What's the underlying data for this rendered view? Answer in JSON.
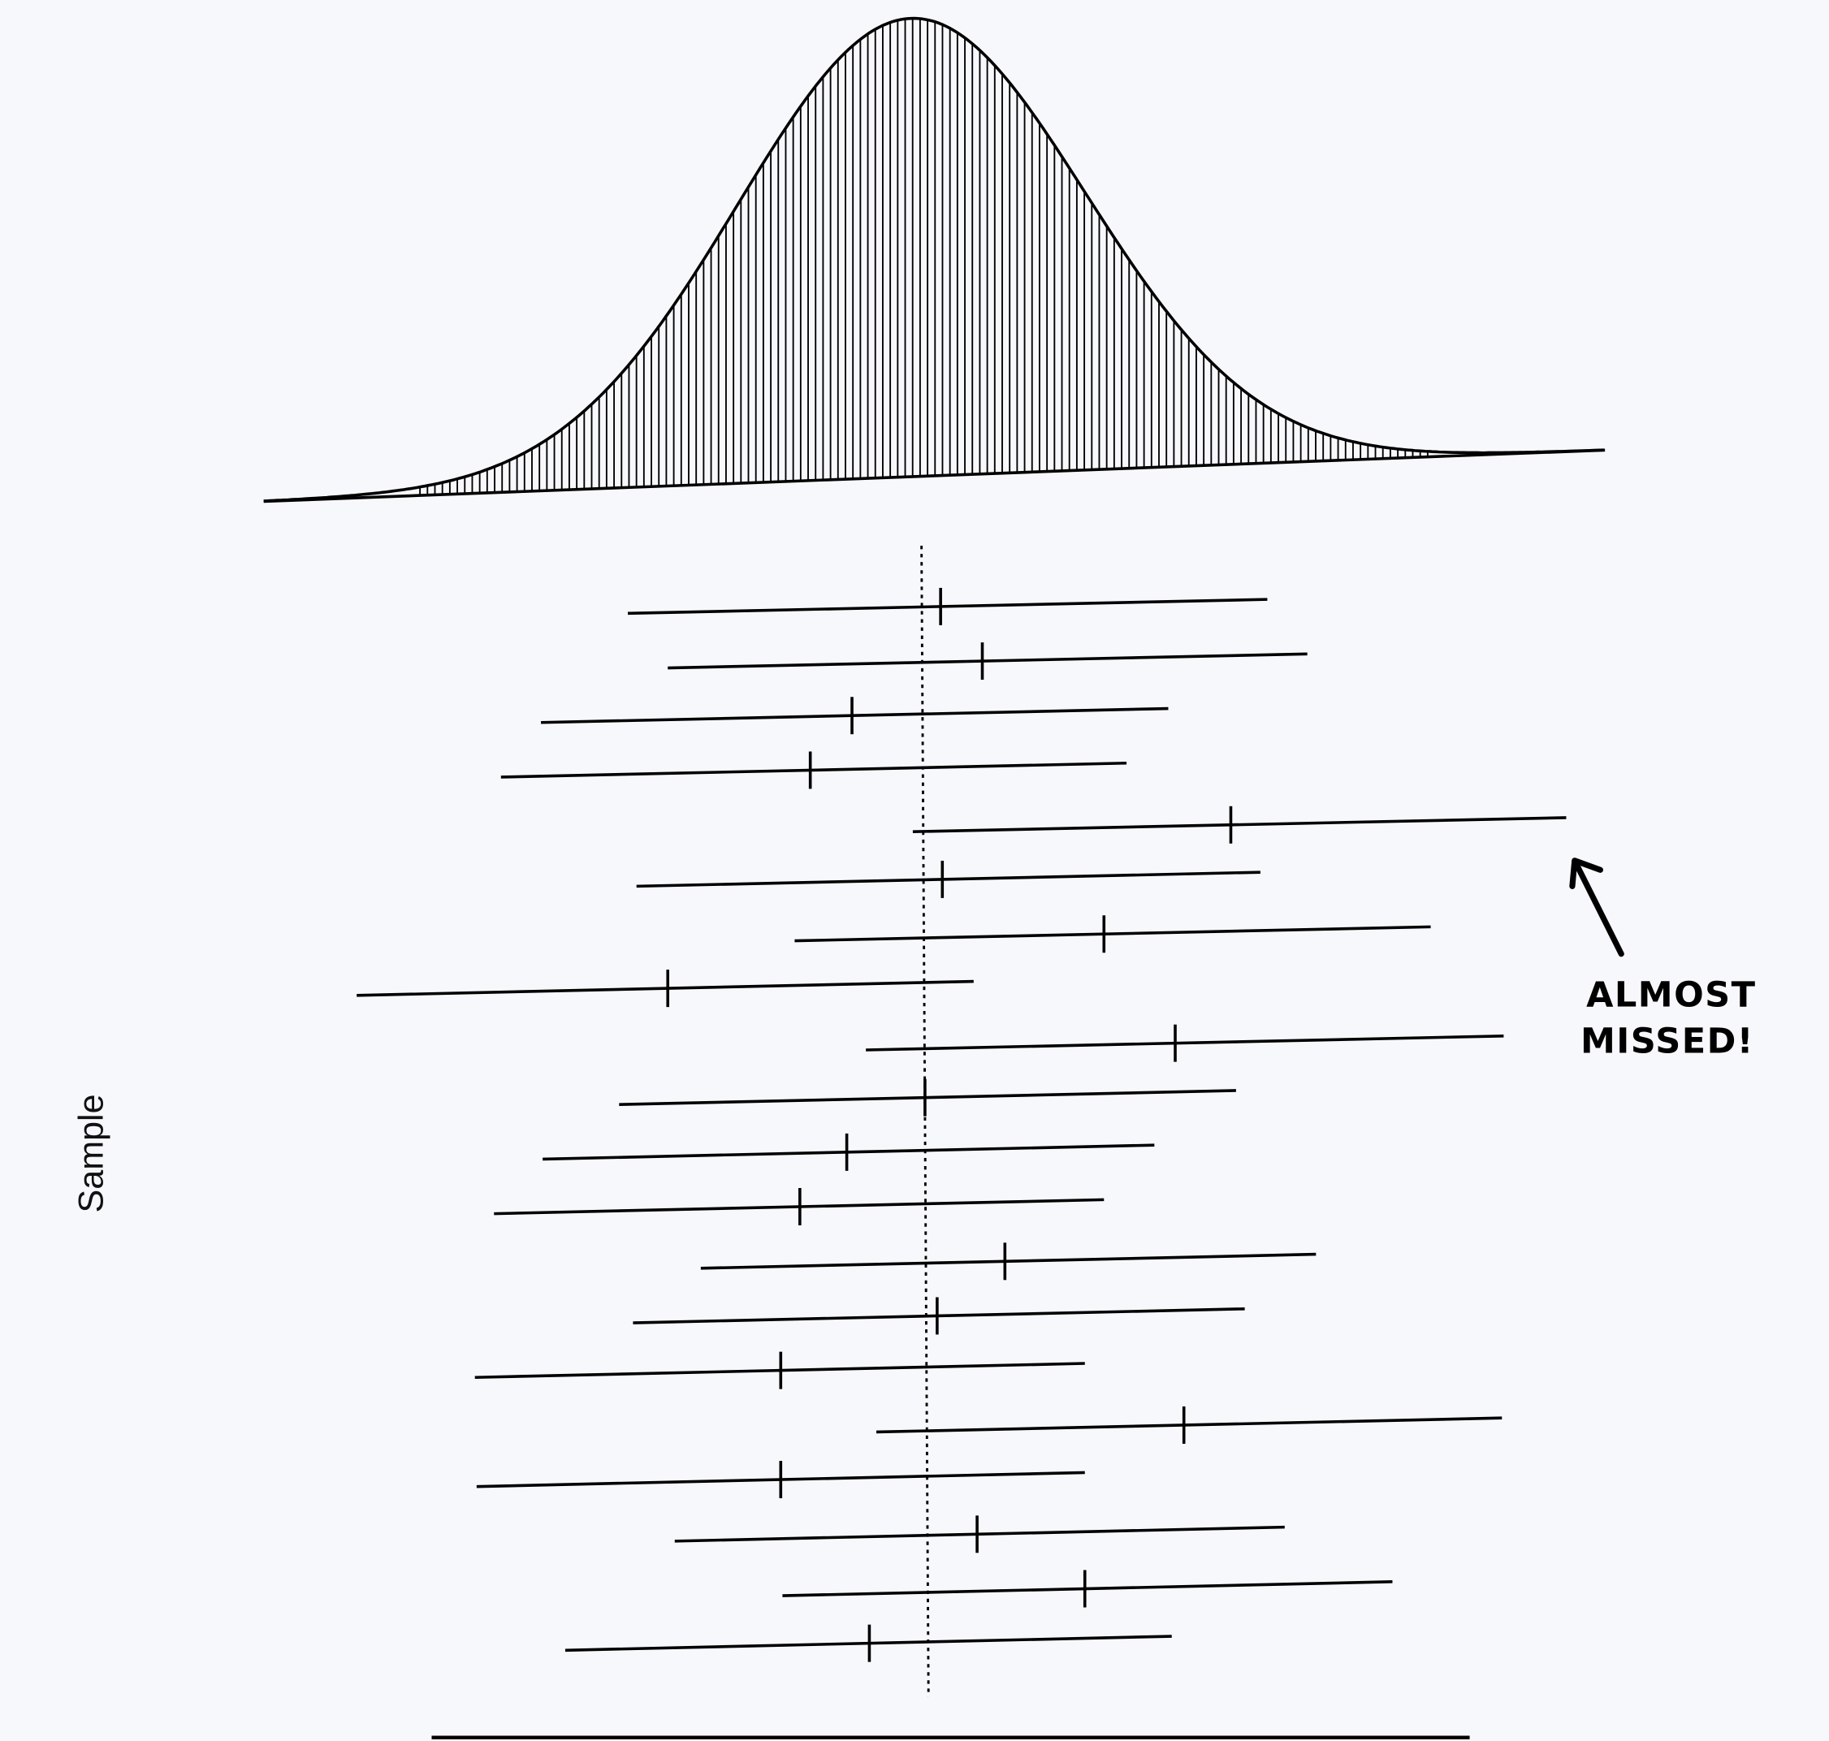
{
  "chart_data": {
    "type": "interval",
    "title": "",
    "xlabel": "",
    "ylabel": "Sample",
    "grid": false,
    "legend": "none",
    "population_distribution": {
      "shape": "normal",
      "mean": 0,
      "sd": 1,
      "fill": "vertical-hatching"
    },
    "population_mean_line": {
      "value": 0,
      "style": "dotted"
    },
    "intervals": [
      {
        "lower": -1.69,
        "estimate": 0.11,
        "upper": 1.99
      },
      {
        "lower": -1.46,
        "estimate": 0.35,
        "upper": 2.22
      },
      {
        "lower": -2.19,
        "estimate": -0.4,
        "upper": 1.42
      },
      {
        "lower": -2.42,
        "estimate": -0.64,
        "upper": 1.18
      },
      {
        "lower": -0.05,
        "estimate": 1.78,
        "upper": 3.71
      },
      {
        "lower": -1.64,
        "estimate": 0.12,
        "upper": 1.95
      },
      {
        "lower": -0.73,
        "estimate": 1.05,
        "upper": 2.93
      },
      {
        "lower": -3.25,
        "estimate": -1.46,
        "upper": 0.3
      },
      {
        "lower": -0.32,
        "estimate": 1.46,
        "upper": 3.35
      },
      {
        "lower": -1.74,
        "estimate": 0.02,
        "upper": 1.81
      },
      {
        "lower": -2.18,
        "estimate": -0.43,
        "upper": 1.34
      },
      {
        "lower": -2.46,
        "estimate": -0.7,
        "upper": 1.05
      },
      {
        "lower": -1.27,
        "estimate": 0.48,
        "upper": 2.27
      },
      {
        "lower": -1.66,
        "estimate": 0.09,
        "upper": 1.86
      },
      {
        "lower": -2.57,
        "estimate": -0.81,
        "upper": 0.94
      },
      {
        "lower": -0.26,
        "estimate": 1.51,
        "upper": 3.34
      },
      {
        "lower": -2.56,
        "estimate": -0.81,
        "upper": 0.94
      },
      {
        "lower": -1.42,
        "estimate": 0.32,
        "upper": 2.09
      },
      {
        "lower": -0.8,
        "estimate": 0.94,
        "upper": 2.71
      },
      {
        "lower": -2.05,
        "estimate": -0.3,
        "upper": 1.44
      }
    ],
    "annotation": {
      "line1": "ALMOST",
      "line2": "MISSED!",
      "points_to_interval": 5
    }
  },
  "colors": {
    "ink": "#000000",
    "paper": "#f7f8fb"
  }
}
